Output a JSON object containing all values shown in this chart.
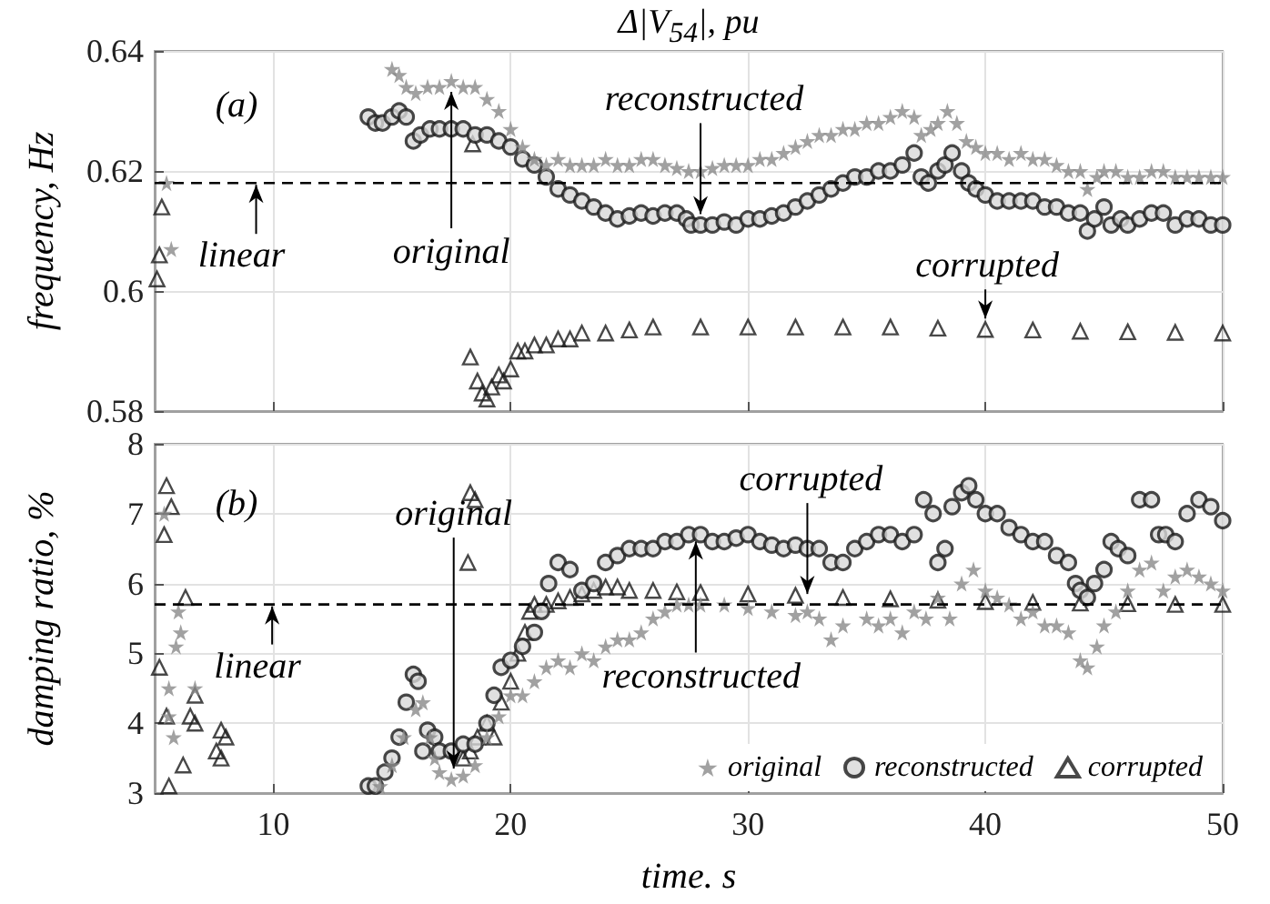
{
  "chart_data": [
    {
      "type": "scatter",
      "title": "Δ|V$_{54}$|, pu",
      "ylabel": "frequency, Hz",
      "xlim": [
        5,
        50
      ],
      "xticks": [
        10,
        20,
        30,
        40,
        50
      ],
      "ylim": [
        0.58,
        0.64
      ],
      "yticks": [
        0.58,
        0.6,
        0.62,
        0.64
      ],
      "grid": true,
      "tick_labels": "y",
      "ref_lines": [
        {
          "axis": "y",
          "value": 0.618,
          "label": "linear",
          "color": "#000000",
          "line_style": "dashed"
        }
      ],
      "annotations": [
        "(a)"
      ],
      "series": [
        {
          "name": "original",
          "color": "#8a8a8a",
          "marker": "star",
          "x": [
            5.5,
            5.7,
            15.0,
            15.3,
            15.6,
            16,
            16.5,
            17,
            17.5,
            18,
            18.5,
            19,
            19.5,
            20,
            20.5,
            21,
            21.5,
            22,
            22.5,
            23,
            23.5,
            24,
            24.5,
            25,
            25.5,
            26,
            26.5,
            27,
            27.5,
            28,
            28.5,
            29,
            29.5,
            30,
            30.5,
            31,
            31.5,
            32,
            32.5,
            33,
            33.5,
            34,
            34.5,
            35,
            35.5,
            36,
            36.5,
            37,
            37.3,
            37.7,
            38,
            38.4,
            38.8,
            39.2,
            39.6,
            40,
            40.5,
            41,
            41.5,
            42,
            42.5,
            43,
            43.5,
            44,
            44.3,
            44.7,
            45,
            45.5,
            46,
            46.5,
            47,
            47.5,
            48,
            48.5,
            49,
            49.5,
            50
          ],
          "values": [
            0.618,
            0.607,
            0.637,
            0.636,
            0.634,
            0.633,
            0.634,
            0.634,
            0.635,
            0.634,
            0.634,
            0.632,
            0.63,
            0.627,
            0.624,
            0.622,
            0.621,
            0.622,
            0.621,
            0.621,
            0.621,
            0.622,
            0.621,
            0.621,
            0.622,
            0.622,
            0.621,
            0.6205,
            0.62,
            0.62,
            0.6205,
            0.621,
            0.621,
            0.621,
            0.622,
            0.622,
            0.623,
            0.624,
            0.625,
            0.626,
            0.626,
            0.627,
            0.627,
            0.628,
            0.628,
            0.629,
            0.63,
            0.629,
            0.626,
            0.627,
            0.628,
            0.63,
            0.628,
            0.625,
            0.624,
            0.623,
            0.623,
            0.622,
            0.623,
            0.622,
            0.622,
            0.621,
            0.62,
            0.62,
            0.617,
            0.619,
            0.62,
            0.62,
            0.619,
            0.619,
            0.62,
            0.62,
            0.619,
            0.619,
            0.619,
            0.619,
            0.619
          ]
        },
        {
          "name": "reconstructed",
          "color": "#1a1a1a",
          "marker": "circle",
          "x": [
            14,
            14.3,
            14.6,
            15,
            15.3,
            15.6,
            15.9,
            16.2,
            16.6,
            17,
            17.5,
            18,
            18.5,
            19,
            19.5,
            20,
            20.5,
            21,
            21.5,
            22,
            22.5,
            23,
            23.5,
            24,
            24.5,
            25,
            25.5,
            26,
            26.5,
            27,
            27.4,
            27.6,
            28,
            28.5,
            29,
            29.5,
            30,
            30.5,
            31,
            31.5,
            32,
            32.5,
            33,
            33.5,
            34,
            34.5,
            35,
            35.5,
            36,
            36.5,
            37,
            37.3,
            37.6,
            38,
            38.3,
            38.6,
            39,
            39.3,
            39.6,
            40,
            40.5,
            41,
            41.5,
            42,
            42.5,
            43,
            43.5,
            44,
            44.3,
            44.6,
            45,
            45.3,
            45.7,
            46,
            46.5,
            47,
            47.5,
            48,
            48.5,
            49,
            49.5,
            50
          ],
          "values": [
            0.629,
            0.628,
            0.628,
            0.629,
            0.63,
            0.629,
            0.625,
            0.626,
            0.627,
            0.627,
            0.627,
            0.627,
            0.626,
            0.626,
            0.625,
            0.624,
            0.622,
            0.621,
            0.619,
            0.617,
            0.616,
            0.615,
            0.614,
            0.613,
            0.612,
            0.6125,
            0.613,
            0.6125,
            0.613,
            0.613,
            0.612,
            0.611,
            0.611,
            0.611,
            0.6115,
            0.611,
            0.612,
            0.612,
            0.6125,
            0.613,
            0.614,
            0.615,
            0.616,
            0.617,
            0.618,
            0.619,
            0.619,
            0.62,
            0.62,
            0.621,
            0.623,
            0.619,
            0.618,
            0.62,
            0.621,
            0.623,
            0.62,
            0.618,
            0.617,
            0.616,
            0.615,
            0.615,
            0.615,
            0.615,
            0.614,
            0.614,
            0.613,
            0.613,
            0.61,
            0.612,
            0.614,
            0.611,
            0.612,
            0.611,
            0.612,
            0.613,
            0.613,
            0.611,
            0.612,
            0.612,
            0.611,
            0.611
          ]
        },
        {
          "name": "corrupted",
          "color": "#1a1a1a",
          "marker": "triangle",
          "x": [
            5.1,
            5.2,
            5.3,
            18.4,
            18.3,
            18.6,
            18.8,
            19.0,
            19.2,
            19.5,
            19.7,
            20,
            20.3,
            20.6,
            21,
            21.5,
            22,
            22.5,
            23,
            24,
            25,
            26,
            28,
            30,
            32,
            34,
            36,
            38,
            40,
            42,
            44,
            46,
            48,
            50
          ],
          "values": [
            0.602,
            0.606,
            0.614,
            0.6245,
            0.589,
            0.585,
            0.583,
            0.582,
            0.584,
            0.586,
            0.585,
            0.587,
            0.59,
            0.59,
            0.591,
            0.591,
            0.592,
            0.592,
            0.593,
            0.593,
            0.5935,
            0.594,
            0.594,
            0.594,
            0.594,
            0.594,
            0.594,
            0.5938,
            0.5936,
            0.5935,
            0.5933,
            0.5932,
            0.5931,
            0.593
          ]
        }
      ]
    },
    {
      "type": "scatter",
      "xlabel": "time. s",
      "ylabel": "damping ratio, %",
      "xlim": [
        5,
        50
      ],
      "xticks": [
        10,
        20,
        30,
        40,
        50
      ],
      "ylim": [
        3,
        8
      ],
      "yticks": [
        3,
        4,
        5,
        6,
        7,
        8
      ],
      "grid": true,
      "legend": "bottom right",
      "ref_lines": [
        {
          "axis": "y",
          "value": 5.7,
          "label": "linear",
          "color": "#000000",
          "line_style": "dashed"
        }
      ],
      "annotations": [
        "(b)",
        {
          "text": "original",
          "x": 17.6,
          "y": 3.35
        },
        {
          "text": "reconstructed",
          "x": 27.8,
          "y": 6.6
        },
        {
          "text": "corrupted",
          "x": 32.5,
          "y": 5.85
        }
      ],
      "series": [
        {
          "name": "original",
          "color": "#8a8a8a",
          "marker": "star",
          "x": [
            5.4,
            5.6,
            5.6,
            5.8,
            5.9,
            6.0,
            6.1,
            6.7,
            14.5,
            15,
            15.5,
            16,
            16.3,
            16.6,
            16.8,
            17,
            17.5,
            18,
            18.5,
            19,
            19.5,
            20,
            20.5,
            21,
            21.5,
            22,
            22.5,
            23,
            23.5,
            24,
            24.5,
            25,
            25.5,
            26,
            26.5,
            27,
            27.5,
            28,
            29,
            30,
            31,
            32,
            32.5,
            33,
            33.5,
            34,
            35,
            35.5,
            36,
            36.5,
            37,
            37.5,
            38,
            38.5,
            39,
            39.5,
            40,
            40.5,
            41,
            41.5,
            42,
            42.5,
            43,
            43.5,
            44,
            44.3,
            44.7,
            45,
            45.5,
            46,
            46.5,
            47,
            47.5,
            48,
            48.5,
            49,
            49.5,
            50
          ],
          "values": [
            7.0,
            4.5,
            4.1,
            3.8,
            5.1,
            5.6,
            5.3,
            4.5,
            3.1,
            3.4,
            3.8,
            4.2,
            4.3,
            3.8,
            3.5,
            3.3,
            3.2,
            3.25,
            3.4,
            3.8,
            4.1,
            4.4,
            4.4,
            4.6,
            4.8,
            4.9,
            4.8,
            5.0,
            4.9,
            5.1,
            5.2,
            5.2,
            5.3,
            5.5,
            5.6,
            5.7,
            5.7,
            5.7,
            5.7,
            5.65,
            5.6,
            5.55,
            5.6,
            5.5,
            5.2,
            5.4,
            5.5,
            5.4,
            5.5,
            5.3,
            5.6,
            5.5,
            5.8,
            5.5,
            6.0,
            6.2,
            5.9,
            5.8,
            5.7,
            5.5,
            5.6,
            5.4,
            5.4,
            5.3,
            4.9,
            4.8,
            5.1,
            5.4,
            5.6,
            5.9,
            6.2,
            6.3,
            5.9,
            6.1,
            6.2,
            6.1,
            6.0,
            5.9
          ]
        },
        {
          "name": "reconstructed",
          "color": "#1a1a1a",
          "marker": "circle",
          "x": [
            14,
            14.3,
            14.7,
            15,
            15.3,
            15.6,
            15.9,
            16.1,
            16.3,
            16.5,
            16.8,
            17,
            17.5,
            18,
            18.5,
            19,
            19.3,
            19.6,
            20,
            20.5,
            21,
            21.3,
            21.6,
            22,
            22.5,
            23,
            23.5,
            24,
            24.5,
            25,
            25.5,
            26,
            26.5,
            27,
            27.5,
            28,
            28.5,
            29,
            29.5,
            30,
            30.5,
            31,
            31.5,
            32,
            32.5,
            33,
            33.5,
            34,
            34.5,
            35,
            35.5,
            36,
            36.5,
            37,
            37.4,
            37.8,
            38,
            38.3,
            38.6,
            39,
            39.3,
            39.6,
            40,
            40.5,
            41,
            41.5,
            42,
            42.5,
            43,
            43.5,
            43.8,
            44,
            44.3,
            44.6,
            45,
            45.3,
            45.6,
            46,
            46.5,
            47,
            47.3,
            47.6,
            48,
            48.5,
            49,
            49.5,
            50
          ],
          "values": [
            3.1,
            3.1,
            3.3,
            3.5,
            3.8,
            4.3,
            4.7,
            4.6,
            3.6,
            3.9,
            3.8,
            3.6,
            3.6,
            3.7,
            3.7,
            4.0,
            4.4,
            4.8,
            4.9,
            5.1,
            5.3,
            5.6,
            6.0,
            6.3,
            6.2,
            5.9,
            6.0,
            6.3,
            6.4,
            6.5,
            6.5,
            6.5,
            6.6,
            6.6,
            6.7,
            6.7,
            6.6,
            6.6,
            6.65,
            6.7,
            6.6,
            6.55,
            6.5,
            6.55,
            6.5,
            6.5,
            6.3,
            6.3,
            6.5,
            6.6,
            6.7,
            6.7,
            6.6,
            6.7,
            7.2,
            7.0,
            6.3,
            6.5,
            7.1,
            7.3,
            7.4,
            7.2,
            7.0,
            7.0,
            6.8,
            6.7,
            6.6,
            6.6,
            6.4,
            6.3,
            6.0,
            5.9,
            5.8,
            6.0,
            6.2,
            6.6,
            6.5,
            6.4,
            7.2,
            7.2,
            6.7,
            6.7,
            6.6,
            7.0,
            7.2,
            7.1,
            6.9
          ]
        },
        {
          "name": "corrupted",
          "color": "#1a1a1a",
          "marker": "triangle",
          "x": [
            5.2,
            5.4,
            5.5,
            5.5,
            5.6,
            5.7,
            6.2,
            6.3,
            6.5,
            6.7,
            6.7,
            7.6,
            7.8,
            7.8,
            8.0,
            18.2,
            18.3,
            18.5,
            18.0,
            18.3,
            18.6,
            19,
            19.3,
            19.6,
            20,
            20.3,
            20.6,
            20.8,
            21,
            21.5,
            22,
            22.5,
            23,
            23.5,
            24,
            24.5,
            25,
            26,
            27,
            28,
            30,
            32,
            34,
            36,
            38,
            40,
            42,
            44,
            46,
            48,
            50
          ],
          "values": [
            4.8,
            6.7,
            7.4,
            4.1,
            3.1,
            7.1,
            3.4,
            5.8,
            4.1,
            4.4,
            4.0,
            3.6,
            3.5,
            3.9,
            3.8,
            6.3,
            7.3,
            7.2,
            3.5,
            3.6,
            3.8,
            4.0,
            3.8,
            4.3,
            4.6,
            5.0,
            5.3,
            5.6,
            5.7,
            5.7,
            5.75,
            5.8,
            5.85,
            5.9,
            5.95,
            5.95,
            5.9,
            5.9,
            5.88,
            5.87,
            5.85,
            5.83,
            5.8,
            5.78,
            5.76,
            5.74,
            5.73,
            5.72,
            5.71,
            5.7,
            5.7
          ]
        }
      ]
    }
  ]
}
